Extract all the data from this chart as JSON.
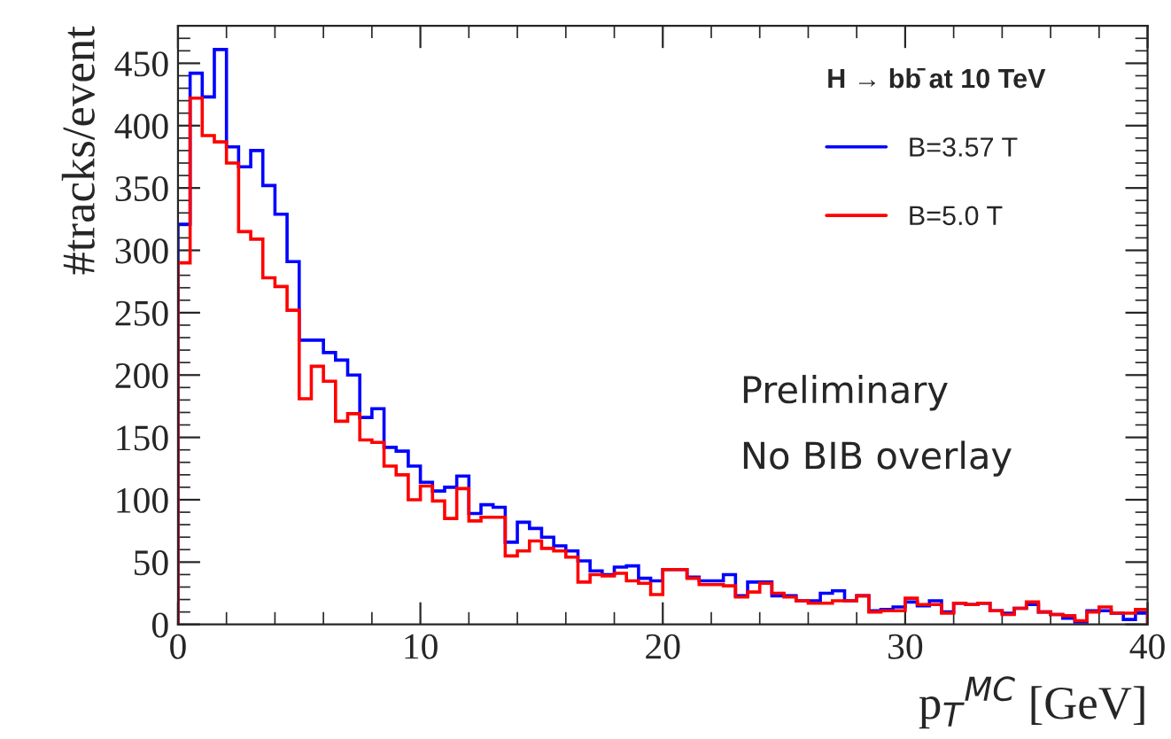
{
  "chart_data": {
    "type": "histogram",
    "xlabel": "p$_{T}$$^{MC}$ [GeV]",
    "ylabel": "#tracks/event",
    "legend_title": "H → bb̄ at 10 TeV",
    "bins": [
      0,
      0.5,
      1,
      1.5,
      2,
      2.5,
      3,
      3.5,
      4,
      4.5,
      5,
      5.5,
      6,
      6.5,
      7,
      7.5,
      8,
      8.5,
      9,
      9.5,
      10,
      10.5,
      11,
      11.5,
      12,
      12.5,
      13,
      13.5,
      14,
      14.5,
      15,
      15.5,
      16,
      16.5,
      17,
      17.5,
      18,
      18.5,
      19,
      19.5,
      20,
      20.5,
      21,
      21.5,
      22,
      22.5,
      23,
      23.5,
      24,
      24.5,
      25,
      25.5,
      26,
      26.5,
      27,
      27.5,
      28,
      28.5,
      29,
      29.5,
      30,
      30.5,
      31,
      31.5,
      32,
      32.5,
      33,
      33.5,
      34,
      34.5,
      35,
      35.5,
      36,
      36.5,
      37,
      37.5,
      38,
      38.5,
      39,
      39.5,
      40
    ],
    "series": [
      {
        "name": "B=3.57 T",
        "color": "#0000ff",
        "values": [
          321,
          442,
          423,
          461,
          383,
          367,
          380,
          352,
          329,
          291,
          228,
          228,
          218,
          212,
          200,
          166,
          173,
          142,
          139,
          127,
          114,
          107,
          110,
          119,
          89,
          96,
          94,
          66,
          82,
          77,
          70,
          63,
          59,
          51,
          43,
          40,
          46,
          47,
          37,
          35,
          44,
          44,
          38,
          35,
          35,
          40,
          23,
          34,
          34,
          23,
          23,
          19,
          19,
          25,
          27,
          19,
          23,
          11,
          12,
          14,
          18,
          15,
          19,
          10,
          17,
          16,
          17,
          11,
          9,
          13,
          16,
          10,
          8,
          5,
          2,
          11,
          11,
          9,
          4,
          9
        ]
      },
      {
        "name": "B=5.0 T",
        "color": "#ff0000",
        "values": [
          290,
          422,
          392,
          387,
          370,
          315,
          309,
          278,
          271,
          252,
          181,
          207,
          195,
          163,
          169,
          148,
          146,
          127,
          120,
          100,
          111,
          99,
          85,
          109,
          83,
          86,
          86,
          55,
          59,
          67,
          61,
          59,
          54,
          34,
          40,
          39,
          41,
          35,
          33,
          24,
          44,
          44,
          37,
          32,
          32,
          31,
          22,
          26,
          33,
          25,
          22,
          19,
          17,
          17,
          19,
          19,
          23,
          10,
          11,
          11,
          21,
          16,
          16,
          9,
          17,
          16,
          17,
          11,
          8,
          13,
          18,
          10,
          8,
          7,
          3,
          10,
          14,
          9,
          9,
          12
        ]
      }
    ],
    "xlim": [
      0,
      40
    ],
    "ylim": [
      0,
      480
    ],
    "xticks": [
      0,
      10,
      20,
      30,
      40
    ],
    "yticks": [
      0,
      50,
      100,
      150,
      200,
      250,
      300,
      350,
      400,
      450
    ],
    "annotations": [
      "Preliminary",
      "No BIB overlay"
    ],
    "legend": "top right",
    "grid": false
  }
}
